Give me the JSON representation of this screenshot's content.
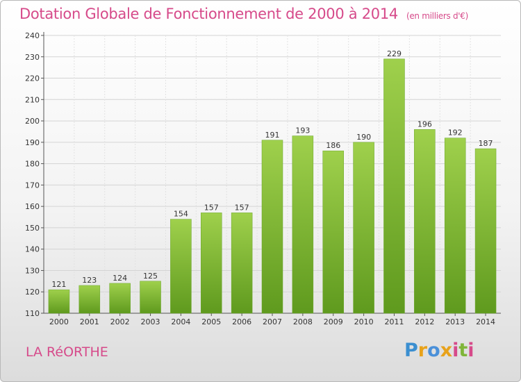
{
  "chart_data": {
    "type": "bar",
    "title": "Dotation Globale de Fonctionnement de 2000 à 2014",
    "unit_label": "(en milliers d'€)",
    "categories": [
      "2000",
      "2001",
      "2002",
      "2003",
      "2004",
      "2005",
      "2006",
      "2007",
      "2008",
      "2009",
      "2010",
      "2011",
      "2012",
      "2013",
      "2014"
    ],
    "values": [
      121,
      123,
      124,
      125,
      154,
      157,
      157,
      191,
      193,
      186,
      190,
      229,
      196,
      192,
      187
    ],
    "ylim": [
      110,
      240
    ],
    "yticks": [
      110,
      120,
      130,
      140,
      150,
      160,
      170,
      180,
      190,
      200,
      210,
      220,
      230,
      240
    ],
    "grid": true,
    "bar_color": "#7fb83a"
  },
  "footer": {
    "commune": "LA RéORTHE",
    "logo_text": "Proxiti"
  }
}
